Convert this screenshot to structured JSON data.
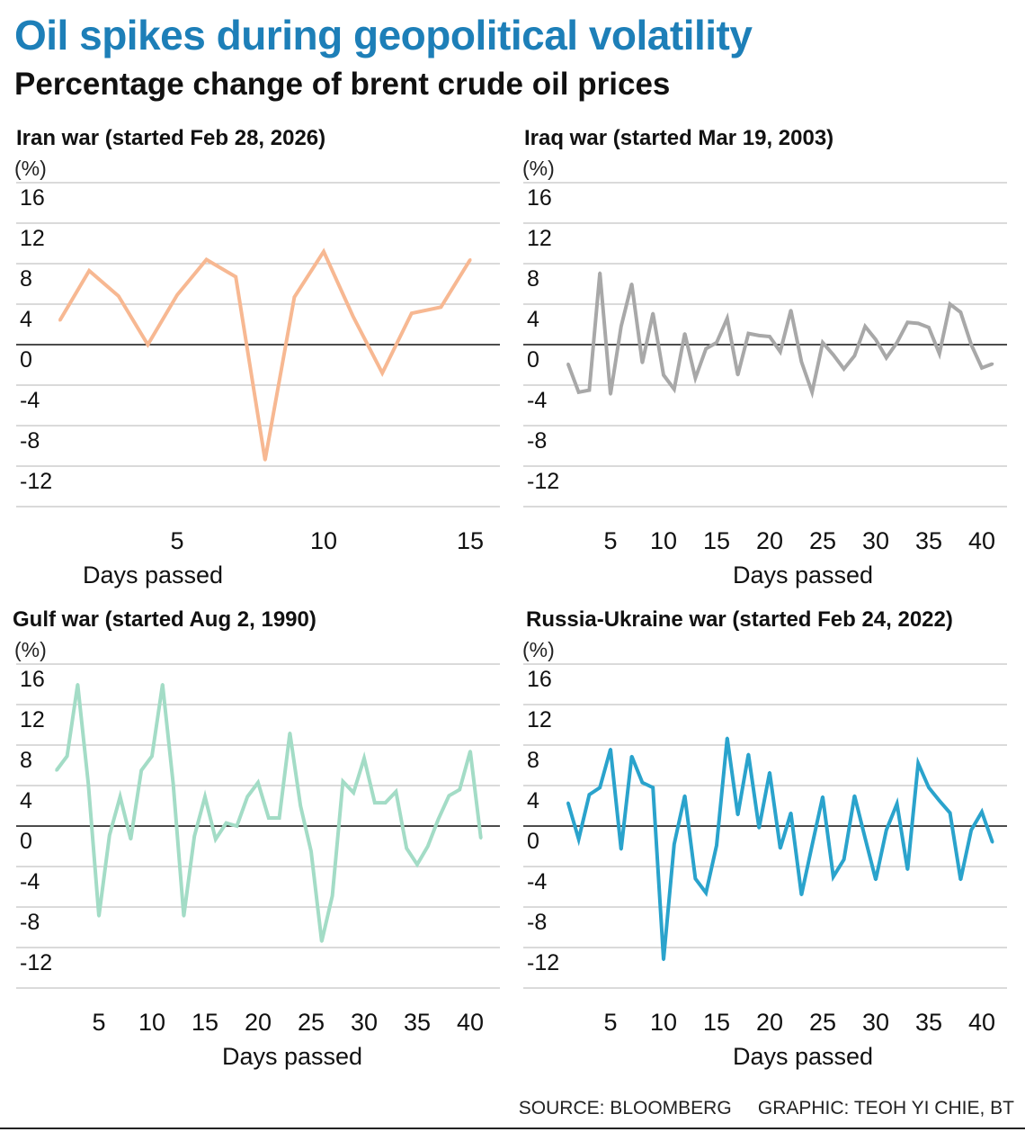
{
  "header": {
    "title": "Oil spikes during geopolitical volatility",
    "subtitle": "Percentage change of brent crude oil prices"
  },
  "footer": {
    "source": "SOURCE: BLOOMBERG",
    "credit": "GRAPHIC: TEOH YI CHIE, BT"
  },
  "chart_data": [
    {
      "type": "line",
      "title": "Iran war (started Feb 28, 2026)",
      "ylabel": "(%)",
      "xlabel": "Days passed",
      "color": "#f7b892",
      "ylim": [
        -16,
        16
      ],
      "yticks": [
        16,
        12,
        8,
        4,
        0,
        -4,
        -8,
        -12
      ],
      "xticks": [
        5,
        10,
        15
      ],
      "grid": true,
      "x": [
        1,
        2,
        3,
        4,
        5,
        6,
        7,
        8,
        9,
        10,
        11,
        12,
        13,
        14,
        15
      ],
      "values": [
        2.4,
        7.3,
        4.8,
        0,
        4.9,
        8.4,
        6.7,
        -11.4,
        4.7,
        9.2,
        2.8,
        -2.8,
        3.1,
        3.7,
        8.4
      ]
    },
    {
      "type": "line",
      "title": "Iraq war (started Mar 19, 2003)",
      "ylabel": "(%)",
      "xlabel": "Days passed",
      "color": "#a8a8a8",
      "ylim": [
        -16,
        16
      ],
      "yticks": [
        16,
        12,
        8,
        4,
        0,
        -4,
        -8,
        -12
      ],
      "xticks": [
        5,
        10,
        15,
        20,
        25,
        30,
        35,
        40
      ],
      "grid": true,
      "x": [
        1,
        2,
        3,
        4,
        5,
        6,
        7,
        8,
        9,
        10,
        11,
        12,
        13,
        14,
        15,
        16,
        17,
        18,
        19,
        20,
        21,
        22,
        23,
        24,
        25,
        26,
        27,
        28,
        29,
        30,
        31,
        32,
        33,
        34,
        35,
        36,
        37,
        38,
        39,
        40,
        41
      ],
      "values": [
        -1.9,
        -4.7,
        -4.5,
        7.1,
        -4.9,
        1.8,
        6.0,
        -1.8,
        3.1,
        -3.0,
        -4.4,
        1.1,
        -3.3,
        -0.4,
        0.2,
        2.6,
        -3.0,
        1.1,
        0.9,
        0.8,
        -0.7,
        3.4,
        -1.7,
        -4.7,
        0.2,
        -1.0,
        -2.4,
        -1.1,
        1.8,
        0.5,
        -1.3,
        0.2,
        2.2,
        2.1,
        1.7,
        -0.9,
        4.0,
        3.2,
        0,
        -2.3,
        -1.9
      ]
    },
    {
      "type": "line",
      "title": "Gulf war (started Aug 2, 1990)",
      "ylabel": "(%)",
      "xlabel": "Days passed",
      "color": "#a3dcc6",
      "ylim": [
        -16,
        16
      ],
      "yticks": [
        16,
        12,
        8,
        4,
        0,
        -4,
        -8,
        -12
      ],
      "xticks": [
        5,
        10,
        15,
        20,
        25,
        30,
        35,
        40
      ],
      "grid": true,
      "x": [
        1,
        2,
        3,
        4,
        5,
        6,
        7,
        8,
        9,
        10,
        11,
        12,
        13,
        14,
        15,
        16,
        17,
        18,
        19,
        20,
        21,
        22,
        23,
        24,
        25,
        26,
        27,
        28,
        29,
        30,
        31,
        32,
        33,
        34,
        35,
        36,
        37,
        38,
        39,
        40,
        41
      ],
      "values": [
        5.5,
        6.9,
        14.0,
        4.2,
        -8.9,
        -0.9,
        2.9,
        -1.3,
        5.5,
        6.9,
        14.0,
        4.2,
        -8.9,
        -1.0,
        2.9,
        -1.3,
        0.3,
        0,
        2.9,
        4.3,
        0.8,
        0.8,
        9.2,
        2.0,
        -2.5,
        -11.4,
        -6.9,
        4.4,
        3.3,
        6.7,
        2.3,
        2.3,
        3.4,
        -2.2,
        -3.8,
        -2.0,
        0.7,
        3.0,
        3.6,
        7.4,
        -1.2
      ]
    },
    {
      "type": "line",
      "title": "Russia-Ukraine war (started Feb 24, 2022)",
      "ylabel": "(%)",
      "xlabel": "Days passed",
      "color": "#2aa3cc",
      "ylim": [
        -16,
        16
      ],
      "yticks": [
        16,
        12,
        8,
        4,
        0,
        -4,
        -8,
        -12
      ],
      "xticks": [
        5,
        10,
        15,
        20,
        25,
        30,
        35,
        40
      ],
      "grid": true,
      "x": [
        1,
        2,
        3,
        4,
        5,
        6,
        7,
        8,
        9,
        10,
        11,
        12,
        13,
        14,
        15,
        16,
        17,
        18,
        19,
        20,
        21,
        22,
        23,
        24,
        25,
        26,
        27,
        28,
        29,
        30,
        31,
        32,
        33,
        34,
        35,
        36,
        37,
        38,
        39,
        40,
        41
      ],
      "values": [
        2.3,
        -1.3,
        3.1,
        3.8,
        7.6,
        -2.3,
        6.9,
        4.3,
        3.8,
        -13.2,
        -1.8,
        3.0,
        -5.2,
        -6.6,
        -1.9,
        8.7,
        1.1,
        7.1,
        -0.2,
        5.3,
        -2.2,
        1.3,
        -6.8,
        -1.9,
        2.9,
        -5.0,
        -3.3,
        3.0,
        -1.2,
        -5.3,
        -0.4,
        2.2,
        -4.3,
        6.2,
        3.8,
        2.5,
        1.3,
        -5.3,
        -0.4,
        1.4,
        -1.6
      ]
    }
  ]
}
